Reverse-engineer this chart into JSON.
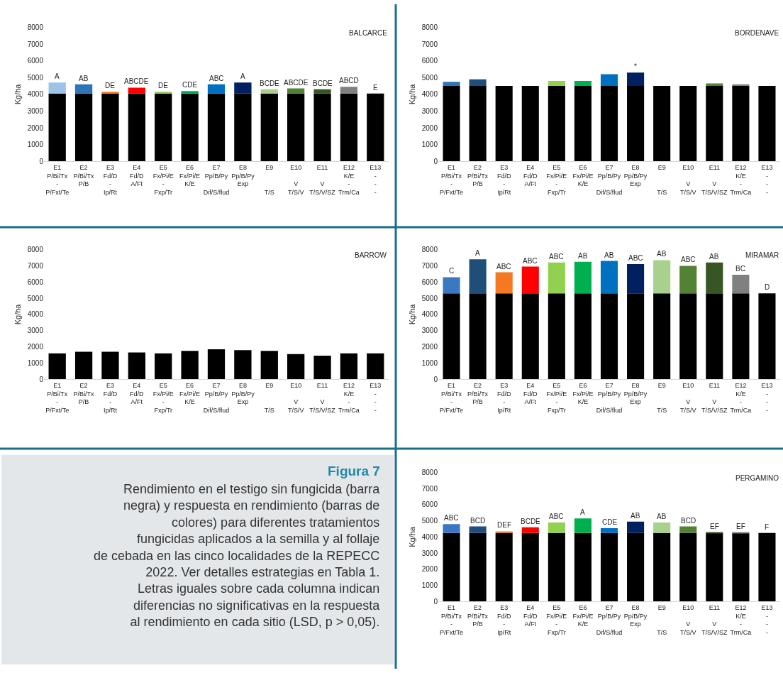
{
  "chart_data": [
    {
      "type": "bar",
      "title": "BALCARCE",
      "ylabel": "Kg/ha",
      "stacked": true,
      "ylim": [
        0,
        8000
      ],
      "yticks": [
        0,
        1000,
        2000,
        3000,
        4000,
        5000,
        6000,
        7000,
        8000
      ],
      "grid": false,
      "categories": [
        "E1\nP/Bi/Tx\n-\nP/Fxt/Te",
        "E2\nP/Bi/Tx\nP/B\n",
        "E3\nFd/D\n-\nIp/Rt",
        "E4\nFd/D\nA/Ft\n",
        "E5\nFx/Pi/E\n-\nFxp/Tr",
        "E6\nFx/Pi/E\nK/E\n",
        "E7\nPp/B/Py\n\nDif/S/flud",
        "E8\nPp/B/Py\nExp\n",
        "E9\n\n\nT/S",
        "E10\n\nV\nT/S/V",
        "E11\n\nV\nT/S/V/SZ",
        "E12\nK/E\n-\nTrm/Ca",
        "E13\n-\n-\n-"
      ],
      "series": [
        {
          "color": "#000000",
          "values": [
            4050,
            4050,
            4050,
            4050,
            4050,
            4050,
            4050,
            4050,
            4050,
            4050,
            4050,
            4050,
            4050
          ]
        },
        {
          "colors": [
            "#9dc3e6",
            "#2e75b6",
            "#f47920",
            "#ff0000",
            "#92d050",
            "#00b050",
            "#0070c0",
            "#002060",
            "#a9d18e",
            "#548235",
            "#375623",
            "#808080",
            "#000000"
          ],
          "values": [
            650,
            550,
            100,
            350,
            100,
            150,
            550,
            650,
            250,
            300,
            250,
            400,
            0
          ],
          "value_labels": [
            "A",
            "AB",
            "DE",
            "ABCDE",
            "DE",
            "CDE",
            "ABC",
            "A",
            "BCDE",
            "ABCDE",
            "BCDE",
            "ABCD",
            "E"
          ]
        }
      ]
    },
    {
      "type": "bar",
      "title": "BORDENAVE",
      "ylabel": "Kg/ha",
      "stacked": true,
      "ylim": [
        0,
        8000
      ],
      "yticks": [
        0,
        1000,
        2000,
        3000,
        4000,
        5000,
        6000,
        7000,
        8000
      ],
      "grid": false,
      "categories": [
        "E1\nP/Bi/Tx\n-\nP/Fxt/Te",
        "E2\nP/Bi/Tx\nP/B\n",
        "E3\nFd/D\n-\nIp/Rt",
        "E4\nFd/D\nA/Ft\n",
        "E5\nFx/Pi/E\n-\nFxp/Tr",
        "E6\nFx/Pi/E\nK/E\n",
        "E7\nPp/B/Py\n\nDif/S/flud",
        "E8\nPp/B/Py\nExp\n",
        "E9\n\n\nT/S",
        "E10\n\nV\nT/S/V",
        "E11\n\nV\nT/S/V/SZ",
        "E12\nK/E\n-\nTrm/Ca",
        "E13\n-\n-\n-"
      ],
      "series": [
        {
          "color": "#000000",
          "values": [
            4500,
            4500,
            4500,
            4500,
            4500,
            4500,
            4500,
            4500,
            4500,
            4500,
            4500,
            4500,
            4500
          ]
        },
        {
          "colors": [
            "#2e75b6",
            "#1f4e79",
            "#000000",
            "#000000",
            "#92d050",
            "#00b050",
            "#0070c0",
            "#002060",
            "#000000",
            "#000000",
            "#548235",
            "#808080",
            "#000000"
          ],
          "values": [
            250,
            400,
            0,
            0,
            300,
            300,
            700,
            800,
            0,
            0,
            150,
            100,
            0
          ],
          "value_labels": [
            null,
            null,
            null,
            null,
            null,
            null,
            null,
            "*",
            null,
            null,
            null,
            null,
            null
          ]
        }
      ]
    },
    {
      "type": "bar",
      "title": "BARROW",
      "ylabel": "Kg/ha",
      "ylim": [
        0,
        8000
      ],
      "yticks": [
        0,
        1000,
        2000,
        3000,
        4000,
        5000,
        6000,
        7000,
        8000
      ],
      "grid": false,
      "categories": [
        "E1\nP/Bi/Tx\n-\nP/Fxt/Te",
        "E2\nP/Bi/Tx\nP/B\n",
        "E3\nFd/D\n-\nIp/Rt",
        "E4\nFd/D\nA/Ft\n",
        "E5\nFx/Pi/E\n-\nFxp/Tr",
        "E6\nFx/Pi/E\nK/E\n",
        "E7\nPp/B/Py\n\nDif/S/flud",
        "E8\nPp/B/Py\nExp\n",
        "E9\n\n\nT/S",
        "E10\n\nV\nT/S/V",
        "E11\n\nV\nT/S/V/SZ",
        "E12\nK/E\n-\nTrm/Ca",
        "E13\n-\n-\n-"
      ],
      "series": [
        {
          "color": "#000000",
          "values": [
            1600,
            1700,
            1700,
            1650,
            1600,
            1750,
            1850,
            1800,
            1750,
            1550,
            1450,
            1600,
            1600
          ]
        }
      ]
    },
    {
      "type": "bar",
      "title": "MIRAMAR",
      "ylabel": "Kg/ha",
      "stacked": true,
      "ylim": [
        0,
        8000
      ],
      "yticks": [
        0,
        1000,
        2000,
        3000,
        4000,
        5000,
        6000,
        7000,
        8000
      ],
      "grid": false,
      "categories": [
        "E1\nP/Bi/Tx\n-\nP/Fxt/Te",
        "E2\nP/Bi/Tx\nP/B\n",
        "E3\nFd/D\n-\nIp/Rt",
        "E4\nFd/D\nA/Ft\n",
        "E5\nFx/Pi/E\n-\nFxp/Tr",
        "E6\nFx/Pi/E\nK/E\n",
        "E7\nPp/B/Py\n\nDif/S/flud",
        "E8\nPp/B/Py\nExp\n",
        "E9\n\n\nT/S",
        "E10\n\nV\nT/S/V",
        "E11\n\nV\nT/S/V/SZ",
        "E12\nK/E\n-\nTrm/Ca",
        "E13\n-\n-\n-"
      ],
      "series": [
        {
          "color": "#000000",
          "values": [
            5300,
            5300,
            5300,
            5300,
            5300,
            5300,
            5300,
            5300,
            5300,
            5300,
            5300,
            5300,
            5300
          ]
        },
        {
          "colors": [
            "#3a78c3",
            "#1f4e79",
            "#f47920",
            "#ff0000",
            "#92d050",
            "#00b050",
            "#0070c0",
            "#002060",
            "#a9d18e",
            "#548235",
            "#375623",
            "#808080",
            "#000000"
          ],
          "values": [
            1000,
            2100,
            1300,
            1650,
            1900,
            1950,
            2000,
            1800,
            2050,
            1700,
            1900,
            1150,
            0
          ],
          "value_labels": [
            "C",
            "A",
            "ABC",
            "ABC",
            "ABC",
            "AB",
            "AB",
            "ABC",
            "AB",
            "ABC",
            "AB",
            "BC",
            "D"
          ]
        }
      ]
    },
    {
      "type": "other",
      "title": "Figura 7",
      "annotations": [
        "Rendimiento en el testigo sin fungicida (barra negra) y respuesta en rendimiento (barras de colores) para diferentes tratamientos fungicidas aplicados a la semilla y al follaje de cebada en las cinco localidades de la REPECC 2022. Ver detalles estrategias en Tabla 1. Letras iguales sobre cada columna indican diferencias no significativas en la respuesta al rendimiento en cada sitio (LSD, p > 0,05)."
      ]
    },
    {
      "type": "bar",
      "title": "PERGAMINO",
      "ylabel": "Kg/ha",
      "stacked": true,
      "ylim": [
        0,
        8000
      ],
      "yticks": [
        0,
        1000,
        2000,
        3000,
        4000,
        5000,
        6000,
        7000,
        8000
      ],
      "grid": false,
      "categories": [
        "E1\nP/Bi/Tx\n-\nP/Fxt/Te",
        "E2\nP/Bi/Tx\nP/B\n",
        "E3\nFd/D\n-\nIp/Rt",
        "E4\nFd/D\nA/Ft\n",
        "E5\nFx/Pi/E\n-\nFxp/Tr",
        "E6\nFx/Pi/E\nK/E\n",
        "E7\nPp/B/Py\n\nDif/S/flud",
        "E8\nPp/B/Py\nExp\n",
        "E9\n\n\nT/S",
        "E10\n\nV\nT/S/V",
        "E11\n\nV\nT/S/V/SZ",
        "E12\nK/E\n-\nTrm/Ca",
        "E13\n-\n-\n-"
      ],
      "series": [
        {
          "color": "#000000",
          "values": [
            4250,
            4250,
            4250,
            4250,
            4250,
            4250,
            4250,
            4250,
            4250,
            4250,
            4250,
            4250,
            4250
          ]
        },
        {
          "colors": [
            "#3a78c3",
            "#1f4e79",
            "#f47920",
            "#ff0000",
            "#92d050",
            "#00b050",
            "#0070c0",
            "#002060",
            "#a9d18e",
            "#548235",
            "#375623",
            "#808080",
            "#000000"
          ],
          "values": [
            550,
            400,
            100,
            350,
            650,
            900,
            300,
            700,
            650,
            400,
            50,
            50,
            0
          ],
          "value_labels": [
            "ABC",
            "BCD",
            "DEF",
            "BCDE",
            "ABC",
            "A",
            "CDE",
            "AB",
            "AB",
            "BCD",
            "EF",
            "EF",
            "F"
          ]
        }
      ]
    }
  ]
}
